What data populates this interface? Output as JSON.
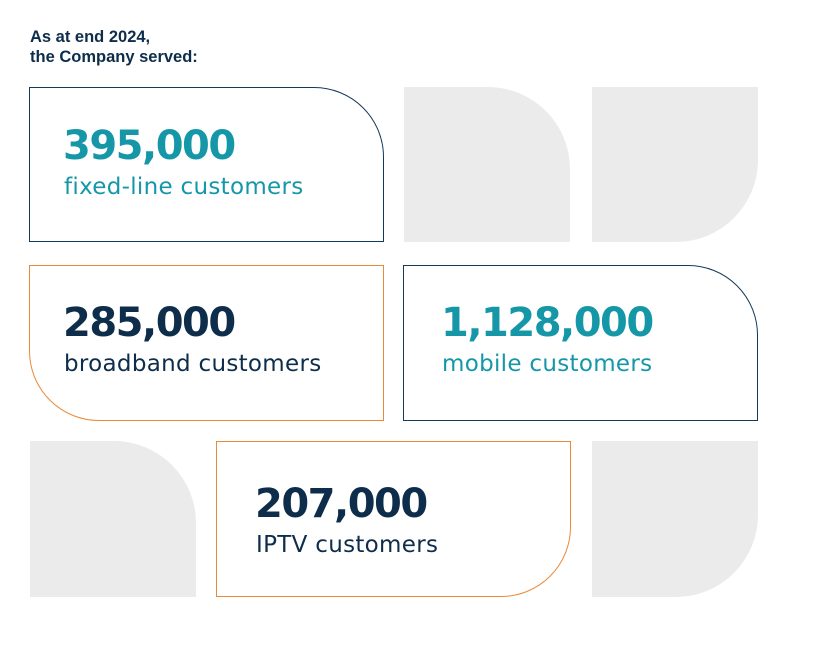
{
  "heading": {
    "line1": "As at end 2024,",
    "line2": "the Company served:"
  },
  "stats": [
    {
      "value": "395,000",
      "label": "fixed-line customers"
    },
    {
      "value": "285,000",
      "label": "broadband customers"
    },
    {
      "value": "1,128,000",
      "label": "mobile customers"
    },
    {
      "value": "207,000",
      "label": "IPTV customers"
    }
  ],
  "colors": {
    "navy": "#0d2d4a",
    "teal": "#1597a8",
    "orange": "#e98a3a",
    "decor_grey": "#ebebeb"
  }
}
